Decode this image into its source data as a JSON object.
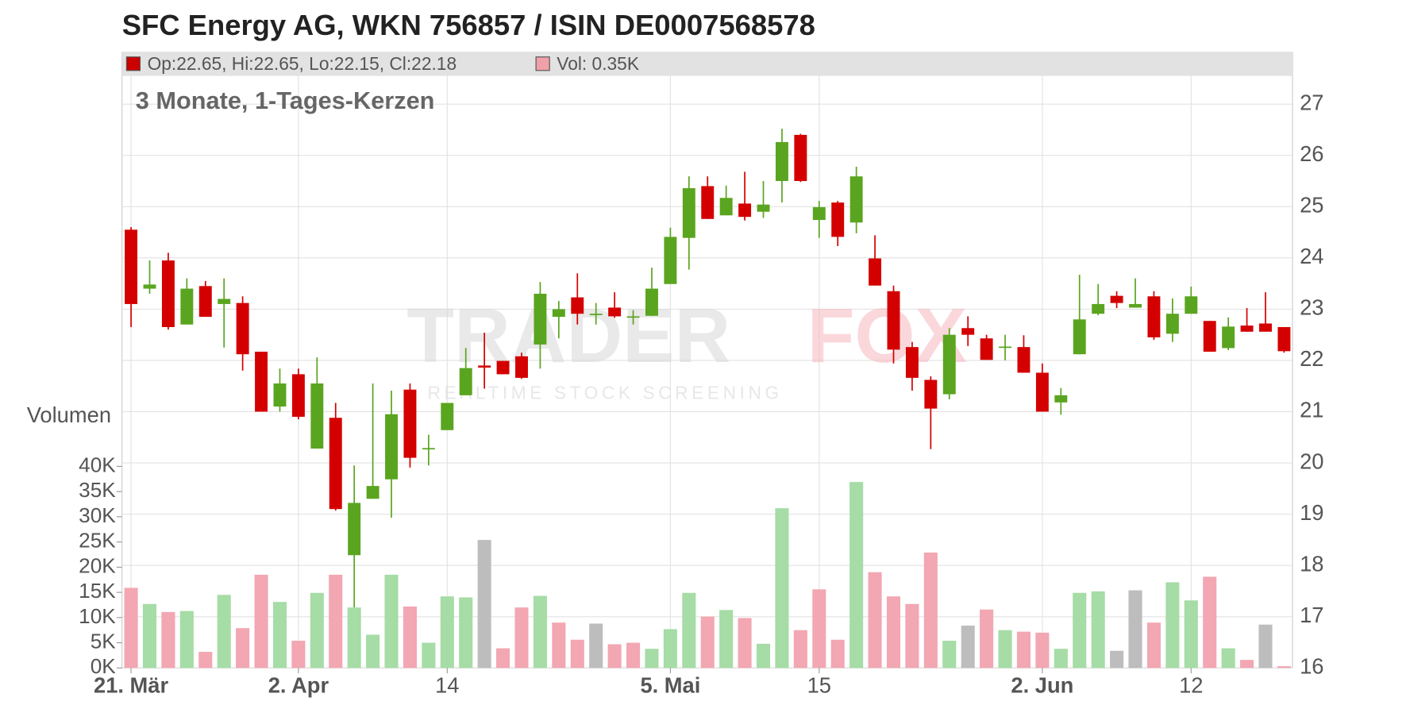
{
  "chart_data": {
    "type": "candlestick",
    "title": "SFC Energy AG, WKN 756857 / ISIN DE0007568578",
    "subtitle": "3 Monate, 1-Tages-Kerzen",
    "legend_ohlc": "Op:22.65, Hi:22.65, Lo:22.15, Cl:22.18",
    "legend_volume": "Vol: 0.35K",
    "legend_colors": [
      "#cc0000",
      "#f0a0a8"
    ],
    "watermark": {
      "brand_left": "TRADER",
      "brand_right": "FOX",
      "tagline": "REALTIME STOCK SCREENING"
    },
    "categories": [
      "21. Mär",
      null,
      null,
      null,
      null,
      null,
      null,
      null,
      null,
      "2. Apr",
      null,
      null,
      null,
      null,
      null,
      null,
      null,
      "14",
      null,
      null,
      null,
      null,
      null,
      null,
      null,
      null,
      null,
      null,
      null,
      "5. Mai",
      null,
      null,
      null,
      null,
      null,
      null,
      null,
      "15",
      null,
      null,
      null,
      null,
      null,
      null,
      null,
      null,
      null,
      null,
      null,
      "2. Jun",
      null,
      null,
      null,
      null,
      null,
      null,
      null,
      "12",
      null,
      null,
      null,
      null,
      null
    ],
    "open": [
      24.55,
      23.4,
      23.95,
      22.7,
      23.45,
      23.1,
      23.12,
      22.17,
      21.1,
      21.73,
      20.28,
      20.88,
      18.2,
      19.3,
      19.68,
      21.43,
      20.27,
      20.64,
      21.32,
      21.9,
      21.99,
      22.08,
      22.31,
      22.85,
      23.23,
      22.9,
      23.03,
      22.85,
      22.87,
      23.49,
      24.39,
      25.4,
      24.83,
      25.06,
      24.9,
      25.5,
      26.4,
      24.74,
      25.08,
      24.69,
      23.99,
      23.35,
      22.26,
      21.62,
      21.34,
      22.63,
      22.43,
      22.26,
      22.26,
      21.76,
      21.18,
      22.12,
      22.91,
      23.26,
      23.03,
      23.25,
      22.52,
      22.91,
      22.77,
      22.24,
      22.68,
      22.72,
      22.65
    ],
    "high": [
      24.6,
      23.95,
      24.1,
      23.6,
      23.55,
      23.6,
      23.25,
      22.17,
      21.84,
      21.84,
      22.06,
      21.17,
      19.95,
      21.55,
      21.41,
      21.55,
      20.55,
      21.17,
      22.24,
      22.54,
      21.99,
      22.15,
      23.53,
      23.16,
      23.7,
      23.12,
      23.33,
      22.98,
      23.81,
      24.59,
      25.59,
      25.59,
      25.41,
      25.68,
      25.5,
      26.52,
      26.42,
      25.11,
      25.11,
      25.78,
      24.44,
      23.46,
      22.36,
      21.69,
      22.63,
      22.86,
      22.5,
      22.5,
      22.49,
      21.94,
      21.46,
      23.67,
      23.49,
      23.35,
      23.6,
      23.35,
      23.21,
      23.44,
      22.77,
      22.84,
      23.02,
      23.33,
      22.65
    ],
    "low": [
      22.65,
      23.3,
      22.6,
      22.7,
      22.85,
      22.25,
      21.8,
      21.0,
      21.0,
      20.85,
      20.28,
      19.07,
      17.18,
      19.3,
      18.93,
      19.91,
      19.95,
      20.64,
      21.32,
      21.45,
      21.73,
      21.64,
      21.84,
      22.43,
      22.7,
      22.7,
      22.83,
      22.7,
      22.87,
      23.49,
      23.77,
      24.76,
      24.83,
      24.73,
      24.78,
      25.08,
      25.48,
      24.39,
      24.23,
      24.48,
      23.46,
      21.94,
      21.41,
      20.27,
      21.24,
      22.28,
      22.01,
      22.0,
      21.76,
      21.0,
      20.94,
      22.12,
      22.88,
      23.02,
      23.03,
      22.4,
      22.36,
      22.91,
      22.17,
      22.2,
      22.56,
      22.56,
      22.15
    ],
    "close": [
      23.1,
      23.48,
      22.65,
      23.4,
      22.85,
      23.2,
      22.12,
      21.0,
      21.55,
      20.9,
      21.55,
      19.1,
      19.22,
      19.55,
      20.95,
      20.1,
      20.29,
      21.17,
      21.85,
      21.86,
      21.73,
      21.66,
      23.3,
      23.0,
      22.91,
      22.91,
      22.86,
      22.86,
      23.4,
      24.41,
      25.36,
      24.76,
      25.17,
      24.8,
      25.04,
      26.26,
      25.5,
      24.99,
      24.41,
      25.59,
      23.46,
      22.21,
      21.66,
      21.06,
      22.5,
      22.5,
      22.01,
      22.27,
      21.76,
      21.0,
      21.32,
      22.8,
      23.1,
      23.12,
      23.1,
      22.45,
      22.91,
      23.25,
      22.17,
      22.66,
      22.56,
      22.56,
      22.18
    ],
    "up_color": "#5aa51f",
    "down_color": "#d40000",
    "ylim": [
      16,
      27.55
    ],
    "yticks": [
      16,
      17,
      18,
      19,
      20,
      21,
      22,
      23,
      24,
      25,
      26,
      27
    ],
    "grid": true,
    "volume": {
      "label": "Volumen",
      "values": [
        15.9,
        12.7,
        11.1,
        11.3,
        3.2,
        14.5,
        7.9,
        18.5,
        13.1,
        5.4,
        14.9,
        18.5,
        12.0,
        6.6,
        18.5,
        12.2,
        5.0,
        14.2,
        14.0,
        25.4,
        3.9,
        12.0,
        14.3,
        9.0,
        5.6,
        8.8,
        4.7,
        5.0,
        3.8,
        7.7,
        14.9,
        10.2,
        11.5,
        9.9,
        4.8,
        31.7,
        7.5,
        15.6,
        5.6,
        36.9,
        19.0,
        14.2,
        12.7,
        22.9,
        5.4,
        8.4,
        11.6,
        7.5,
        7.2,
        7.0,
        3.8,
        14.9,
        15.2,
        3.4,
        15.4,
        9.0,
        17.0,
        13.4,
        18.1,
        3.9,
        1.6,
        8.6,
        0.35
      ],
      "colors": [
        "#f2a7b2",
        "#a6dca6",
        "#f2a7b2",
        "#a6dca6",
        "#f2a7b2",
        "#a6dca6",
        "#f2a7b2",
        "#f2a7b2",
        "#a6dca6",
        "#f2a7b2",
        "#a6dca6",
        "#f2a7b2",
        "#a6dca6",
        "#a6dca6",
        "#a6dca6",
        "#f2a7b2",
        "#a6dca6",
        "#a6dca6",
        "#a6dca6",
        "#bdbdbd",
        "#f2a7b2",
        "#f2a7b2",
        "#a6dca6",
        "#f2a7b2",
        "#f2a7b2",
        "#bdbdbd",
        "#f2a7b2",
        "#f2a7b2",
        "#a6dca6",
        "#a6dca6",
        "#a6dca6",
        "#f2a7b2",
        "#a6dca6",
        "#f2a7b2",
        "#a6dca6",
        "#a6dca6",
        "#f2a7b2",
        "#f2a7b2",
        "#f2a7b2",
        "#a6dca6",
        "#f2a7b2",
        "#f2a7b2",
        "#f2a7b2",
        "#f2a7b2",
        "#a6dca6",
        "#bdbdbd",
        "#f2a7b2",
        "#a6dca6",
        "#f2a7b2",
        "#f2a7b2",
        "#a6dca6",
        "#a6dca6",
        "#a6dca6",
        "#bdbdbd",
        "#bdbdbd",
        "#f2a7b2",
        "#a6dca6",
        "#a6dca6",
        "#f2a7b2",
        "#a6dca6",
        "#f2a7b2",
        "#bdbdbd",
        "#f2a7b2"
      ],
      "ylim": [
        0,
        40
      ],
      "yticks": [
        {
          "value": 0,
          "label": "0K"
        },
        {
          "value": 5,
          "label": "5K"
        },
        {
          "value": 10,
          "label": "10K"
        },
        {
          "value": 15,
          "label": "15K"
        },
        {
          "value": 20,
          "label": "20K"
        },
        {
          "value": 25,
          "label": "25K"
        },
        {
          "value": 30,
          "label": "30K"
        },
        {
          "value": 35,
          "label": "35K"
        },
        {
          "value": 40,
          "label": "40K"
        }
      ]
    }
  }
}
